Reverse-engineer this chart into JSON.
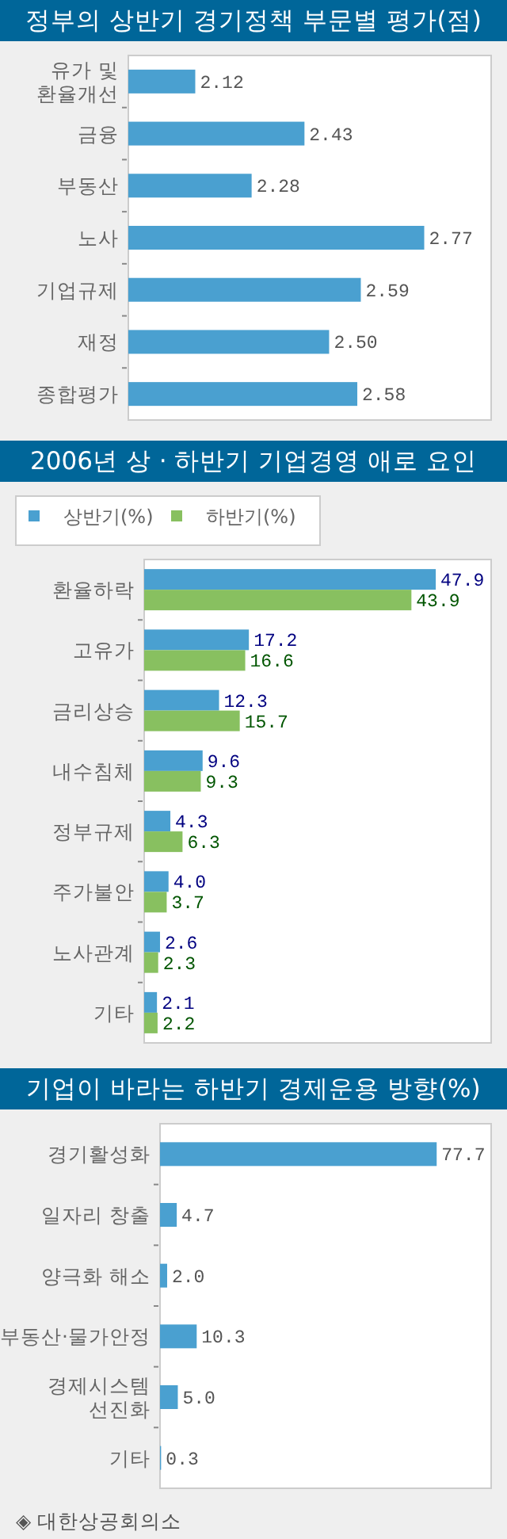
{
  "chart_data": [
    {
      "type": "bar",
      "orientation": "horizontal",
      "title": "정부의 상반기 경기정책 부문별 평가(점)",
      "categories": [
        "유가 및\n환율개선",
        "금융",
        "부동산",
        "노사",
        "기업규제",
        "재정",
        "종합평가"
      ],
      "xlim": [
        1.93,
        2.96
      ],
      "tick_labels": "y",
      "series": [
        {
          "color": "#4aa0d0",
          "values": [
            2.12,
            2.43,
            2.28,
            2.77,
            2.59,
            2.5,
            2.58
          ],
          "value_labels": [
            "2.12",
            "2.43",
            "2.28",
            "2.77",
            "2.59",
            "2.50",
            "2.58"
          ]
        }
      ]
    },
    {
      "type": "bar",
      "orientation": "horizontal",
      "title": "2006년 상 · 하반기 기업경영 애로 요인",
      "categories": [
        "환율하락",
        "고유가",
        "금리상승",
        "내수침체",
        "정부규제",
        "주가불안",
        "노사관계",
        "기타"
      ],
      "xlim": [
        0,
        57
      ],
      "tick_labels": "y",
      "legend": "top left",
      "series": [
        {
          "name": "상반기(%)",
          "color": "#4aa0d0",
          "values": [
            47.9,
            17.2,
            12.3,
            9.6,
            4.3,
            4.0,
            2.6,
            2.1
          ],
          "value_labels": [
            "47.9",
            "17.2",
            "12.3",
            "9.6",
            "4.3",
            "4.0",
            "2.6",
            "2.1"
          ]
        },
        {
          "name": "하반기(%)",
          "color": "#88c060",
          "values": [
            43.9,
            16.6,
            15.7,
            9.3,
            6.3,
            3.7,
            2.3,
            2.2
          ],
          "value_labels": [
            "43.9",
            "16.6",
            "15.7",
            "9.3",
            "6.3",
            "3.7",
            "2.3",
            "2.2"
          ]
        }
      ]
    },
    {
      "type": "bar",
      "orientation": "horizontal",
      "title": "기업이 바라는 하반기 경제운용 방향(%)",
      "categories": [
        "경기활성화",
        "일자리 창출",
        "양극화 해소",
        "부동산·물가안정",
        "경제시스템\n선진화",
        "기타"
      ],
      "xlim": [
        0,
        93
      ],
      "tick_labels": "y",
      "annotations": [
        "◈ 대한상공회의소"
      ],
      "series": [
        {
          "color": "#4aa0d0",
          "values": [
            77.7,
            4.7,
            2.0,
            10.3,
            5.0,
            0.3
          ],
          "value_labels": [
            "77.7",
            "4.7",
            "2.0",
            "10.3",
            "5.0",
            "0.3"
          ]
        }
      ]
    }
  ]
}
